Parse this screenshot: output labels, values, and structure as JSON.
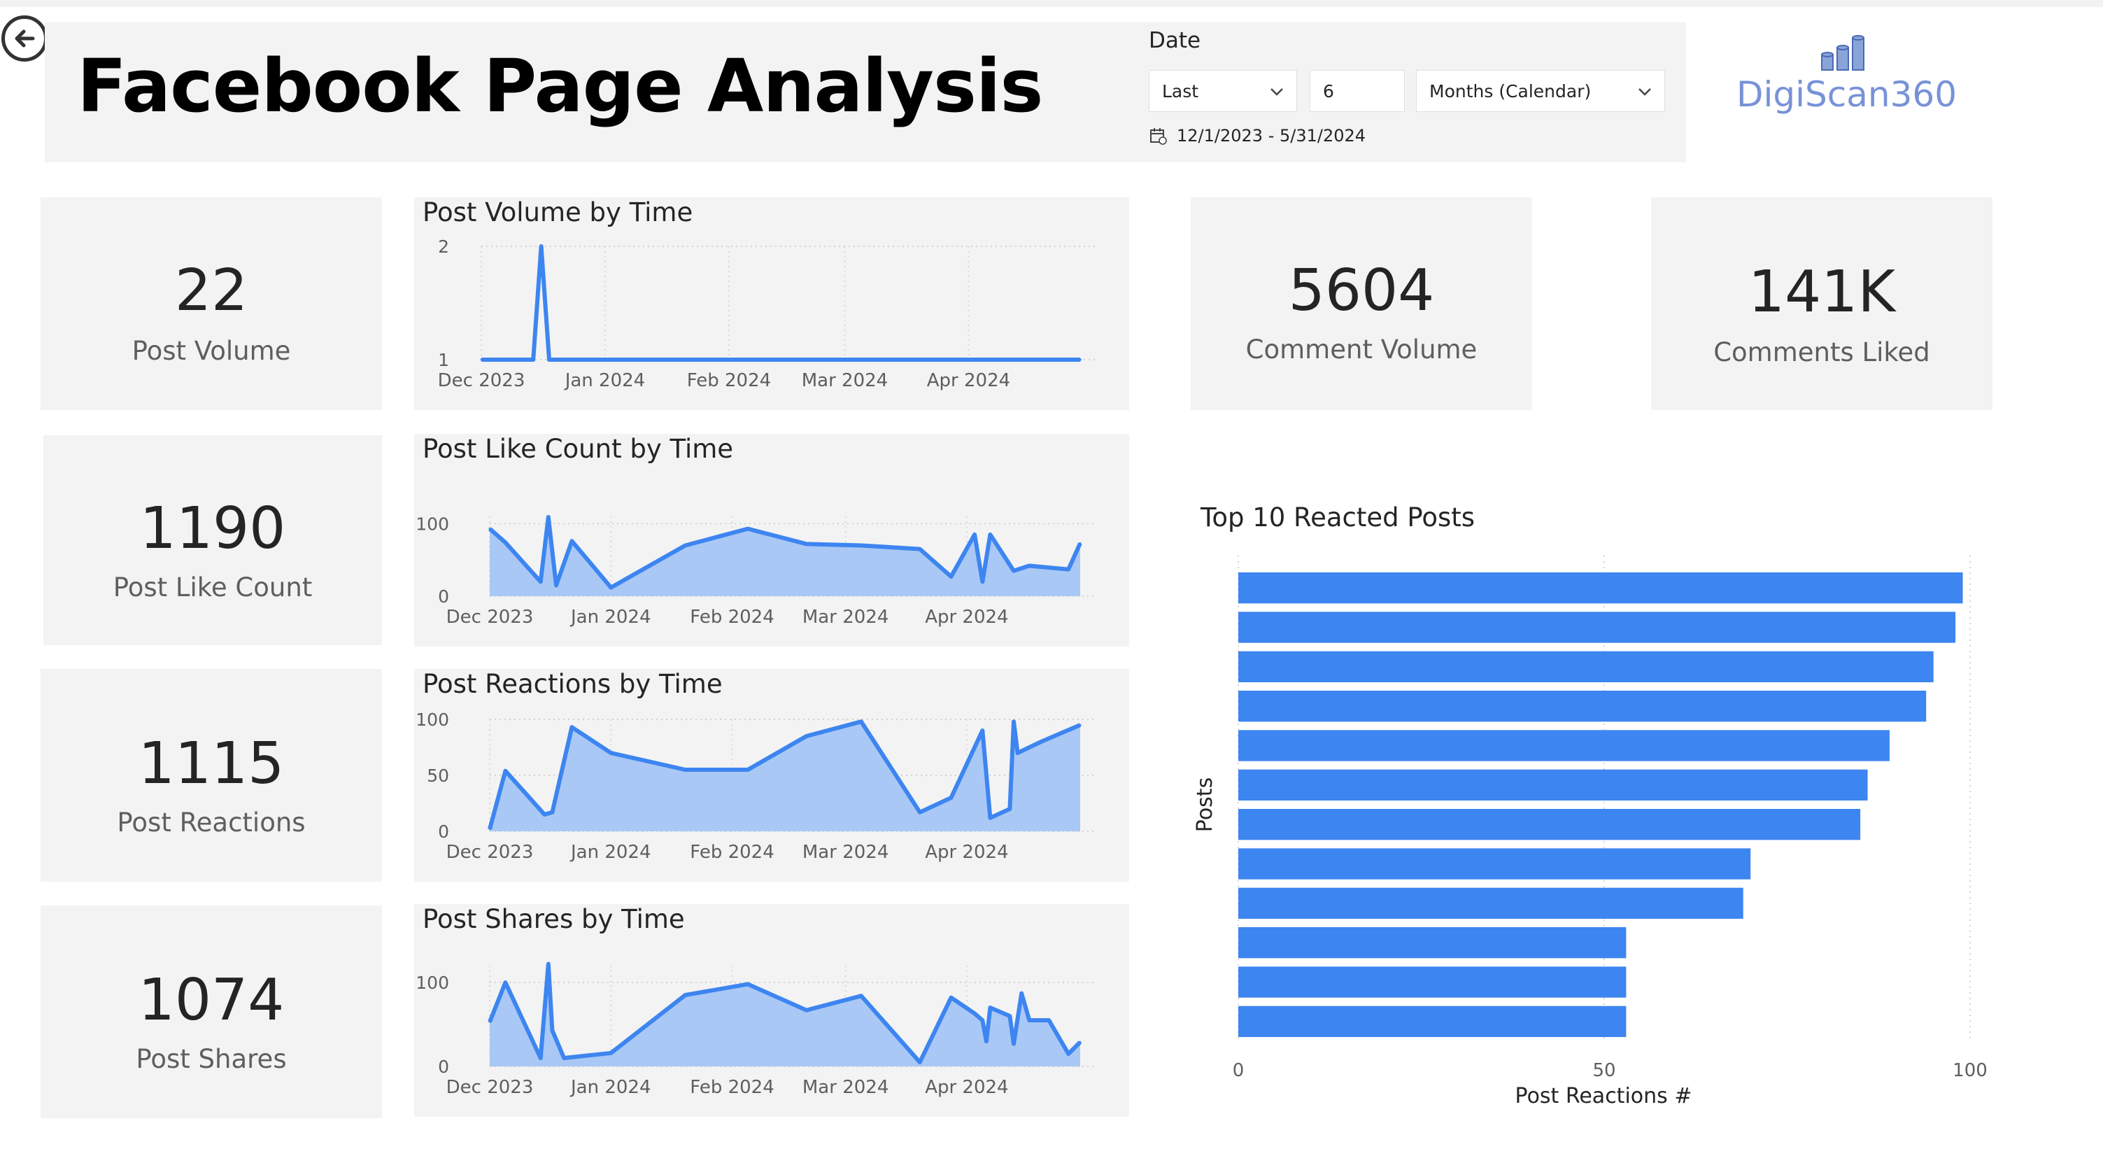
{
  "header": {
    "title": "Facebook Page Analysis",
    "logo_text": "DigiScan360"
  },
  "date_filter": {
    "label": "Date",
    "mode": "Last",
    "count": "6",
    "unit": "Months (Calendar)",
    "range": "12/1/2023 - 5/31/2024"
  },
  "kpis": {
    "post_volume": {
      "value": "22",
      "label": "Post Volume"
    },
    "post_like_count": {
      "value": "1190",
      "label": "Post Like Count"
    },
    "post_reactions": {
      "value": "1115",
      "label": "Post Reactions"
    },
    "post_shares": {
      "value": "1074",
      "label": "Post Shares"
    },
    "comment_volume": {
      "value": "5604",
      "label": "Comment Volume"
    },
    "comments_liked": {
      "value": "141K",
      "label": "Comments Liked"
    }
  },
  "colors": {
    "accent": "#3d85f0",
    "fill": "#a9c8f5",
    "panel": "#f3f3f3"
  },
  "chart_data": [
    {
      "type": "line",
      "title": "Post Volume by Time",
      "x_ticks": [
        "Dec 2023",
        "Jan 2024",
        "Feb 2024",
        "Mar 2024",
        "Apr 2024"
      ],
      "y_ticks": [
        "1",
        "2"
      ],
      "ylim": [
        1,
        2
      ],
      "x": [
        "2023-12-01",
        "2023-12-14",
        "2023-12-16",
        "2023-12-18",
        "2024-04-29"
      ],
      "values": [
        1,
        1,
        2,
        1,
        1
      ]
    },
    {
      "type": "area",
      "title": "Post Like Count by Time",
      "x_ticks": [
        "Dec 2023",
        "Jan 2024",
        "Feb 2024",
        "Mar 2024",
        "Apr 2024"
      ],
      "y_ticks": [
        "0",
        "100"
      ],
      "ylim": [
        0,
        110
      ],
      "x": [
        "2023-12-01",
        "2023-12-05",
        "2023-12-14",
        "2023-12-16",
        "2023-12-18",
        "2023-12-22",
        "2024-01-01",
        "2024-01-20",
        "2024-02-05",
        "2024-02-20",
        "2024-03-05",
        "2024-03-20",
        "2024-03-28",
        "2024-04-03",
        "2024-04-05",
        "2024-04-07",
        "2024-04-13",
        "2024-04-17",
        "2024-04-27",
        "2024-04-30"
      ],
      "values": [
        93,
        74,
        20,
        109,
        15,
        76,
        12,
        70,
        93,
        72,
        70,
        65,
        27,
        85,
        20,
        85,
        35,
        42,
        37,
        73
      ]
    },
    {
      "type": "area",
      "title": "Post Reactions by Time",
      "x_ticks": [
        "Dec 2023",
        "Jan 2024",
        "Feb 2024",
        "Mar 2024",
        "Apr 2024"
      ],
      "y_ticks": [
        "0",
        "50",
        "100"
      ],
      "ylim": [
        0,
        100
      ],
      "x": [
        "2023-12-01",
        "2023-12-05",
        "2023-12-15",
        "2023-12-17",
        "2023-12-22",
        "2024-01-01",
        "2024-01-20",
        "2024-02-05",
        "2024-02-20",
        "2024-03-05",
        "2024-03-20",
        "2024-03-28",
        "2024-04-05",
        "2024-04-07",
        "2024-04-12",
        "2024-04-13",
        "2024-04-14",
        "2024-04-20",
        "2024-04-30"
      ],
      "values": [
        2,
        54,
        15,
        17,
        93,
        70,
        55,
        55,
        85,
        98,
        17,
        30,
        90,
        12,
        20,
        98,
        70,
        80,
        95
      ]
    },
    {
      "type": "area",
      "title": "Post Shares by Time",
      "x_ticks": [
        "Dec 2023",
        "Jan 2024",
        "Feb 2024",
        "Mar 2024",
        "Apr 2024"
      ],
      "y_ticks": [
        "0",
        "100"
      ],
      "ylim": [
        0,
        120
      ],
      "x": [
        "2023-12-01",
        "2023-12-05",
        "2023-12-14",
        "2023-12-16",
        "2023-12-17",
        "2023-12-20",
        "2024-01-01",
        "2024-01-20",
        "2024-02-05",
        "2024-02-20",
        "2024-03-05",
        "2024-03-20",
        "2024-03-28",
        "2024-04-03",
        "2024-04-05",
        "2024-04-06",
        "2024-04-07",
        "2024-04-12",
        "2024-04-13",
        "2024-04-15",
        "2024-04-17",
        "2024-04-22",
        "2024-04-27",
        "2024-04-30"
      ],
      "values": [
        53,
        100,
        10,
        122,
        43,
        10,
        16,
        85,
        98,
        67,
        84,
        5,
        82,
        63,
        55,
        30,
        70,
        60,
        27,
        87,
        55,
        55,
        15,
        29
      ]
    },
    {
      "type": "bar",
      "orientation": "horizontal",
      "title": "Top 10 Reacted Posts",
      "xlabel": "Post Reactions #",
      "ylabel": "Posts",
      "x_ticks": [
        "0",
        "50",
        "100"
      ],
      "xlim": [
        0,
        100
      ],
      "values": [
        99,
        98,
        95,
        94,
        89,
        86,
        85,
        70,
        69,
        53,
        53,
        53
      ]
    }
  ]
}
